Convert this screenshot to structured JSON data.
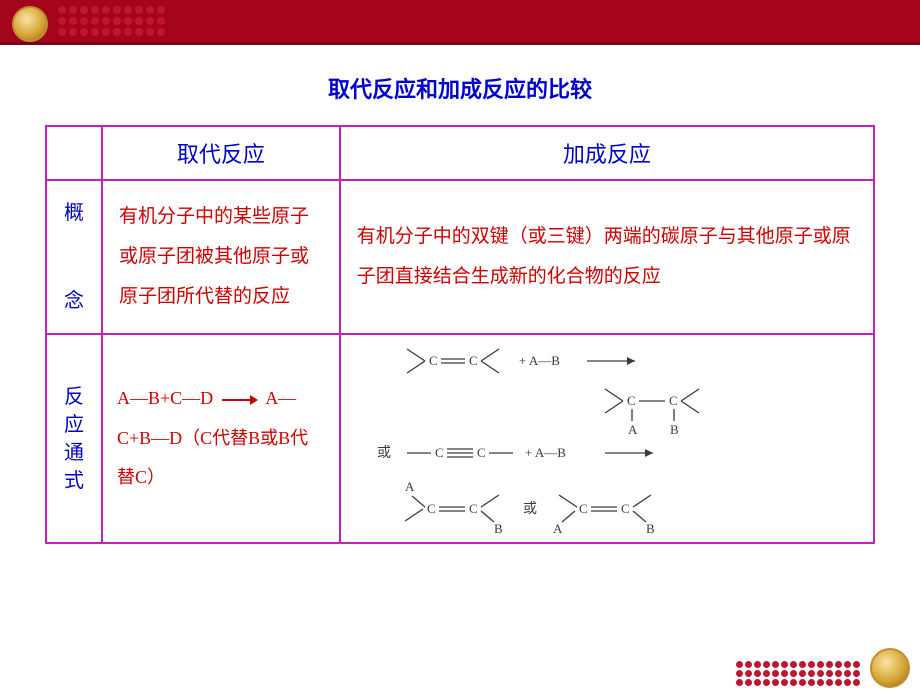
{
  "colors": {
    "header_bg": "#a4051c",
    "header_line": "#7a0315",
    "dot": "#c01530",
    "title_blue": "#0000d0",
    "border_magenta": "#c020c0",
    "text_red": "#d00000",
    "diagram_stroke": "#3a3a3a"
  },
  "title": "取代反应和加成反应的比较",
  "table": {
    "headers": [
      "",
      "取代反应",
      "加成反应"
    ],
    "rows": [
      {
        "label": "概念",
        "label_chars": [
          "概",
          "念"
        ],
        "substitution": "有机分子中的某些原子或原子团被其他原子或原子团所代替的反应",
        "addition": "有机分子中的双键（或三键）两端的碳原子与其他原子或原子团直接结合生成新的化合物的反应"
      },
      {
        "label": "反应通式",
        "label_chars": [
          "反",
          "应",
          "通",
          "式"
        ],
        "substitution_prefix": "A—B+C—D",
        "substitution_suffix": "A—C+B—D（C代替B或B代替C）",
        "addition_diagram": {
          "or_label": "或",
          "atom_c": "C",
          "atom_a": "A",
          "atom_b": "B",
          "plus": "+",
          "bond_ab": "A—B",
          "arrow_len": 40
        }
      }
    ]
  },
  "typography": {
    "title_fontsize": 22,
    "header_fontsize": 22,
    "body_fontsize": 19,
    "diagram_fontsize": 13
  }
}
